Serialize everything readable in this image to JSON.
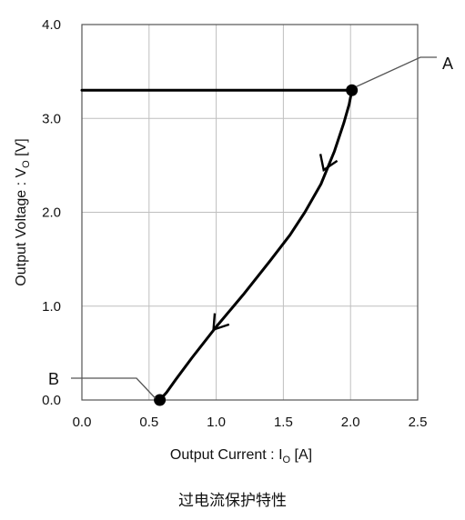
{
  "chart_data": {
    "type": "line",
    "xlabel_text": "Output Current : I",
    "xlabel_sub": "O",
    "xlabel_unit": " [A]",
    "ylabel_text": "Output Voltage : V",
    "ylabel_sub": "O",
    "ylabel_unit": " [V]",
    "xlim": [
      0.0,
      2.5
    ],
    "ylim": [
      0.0,
      4.0
    ],
    "xticks": [
      "0.0",
      "0.5",
      "1.0",
      "1.5",
      "2.0",
      "2.5"
    ],
    "yticks": [
      "0.0",
      "1.0",
      "2.0",
      "3.0",
      "4.0"
    ],
    "grid": true,
    "series": [
      {
        "x": [
          0.0,
          2.01,
          1.99,
          1.95,
          1.88,
          1.78,
          1.66,
          1.55,
          1.4,
          1.2,
          1.0,
          0.82,
          0.7,
          0.63,
          0.58
        ],
        "y": [
          3.3,
          3.3,
          3.15,
          2.95,
          2.65,
          2.3,
          2.0,
          1.76,
          1.48,
          1.12,
          0.78,
          0.45,
          0.22,
          0.08,
          0.0
        ]
      }
    ],
    "points": [
      {
        "label": "A",
        "x": 2.01,
        "y": 3.3
      },
      {
        "label": "B",
        "x": 0.58,
        "y": 0.0
      }
    ],
    "arrows": [
      {
        "x": 1.8,
        "y": 2.45
      },
      {
        "x": 0.98,
        "y": 0.75
      }
    ],
    "line_color": "#000000",
    "grid_color": "#bfbfbf"
  },
  "caption": "过电流保护特性"
}
